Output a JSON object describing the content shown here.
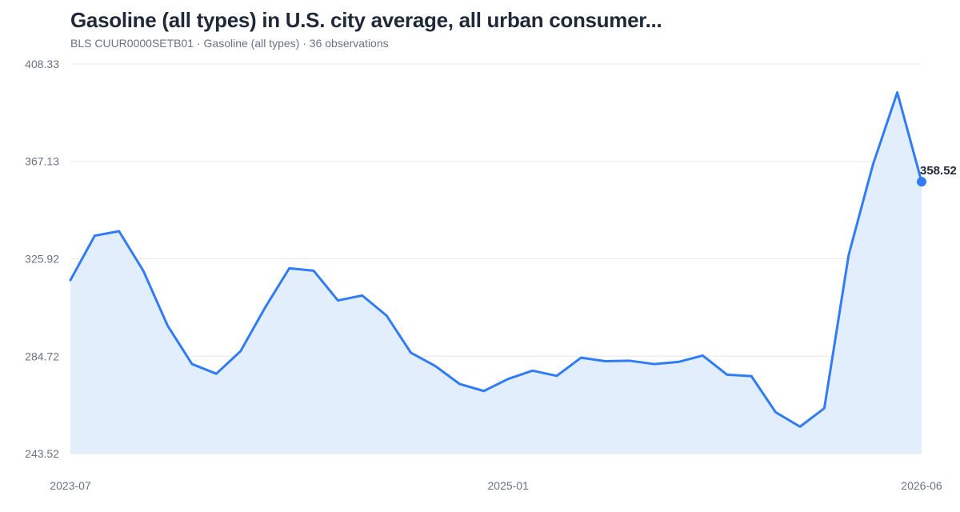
{
  "header": {
    "title": "Gasoline (all types) in U.S. city average, all urban consumer...",
    "subtitle": "BLS CUUR0000SETB01 · Gasoline (all types) · 36 observations"
  },
  "colors": {
    "line": "#2f7cf6",
    "area": "#e3eefc",
    "grid": "#e5e7eb",
    "title": "#1f2937",
    "axis_text": "#6b7280"
  },
  "chart_data": {
    "type": "area",
    "title": "Gasoline (all types) in U.S. city average, all urban consumer...",
    "xlabel": "",
    "ylabel": "",
    "grid": true,
    "x_ticks": [
      "2023-07",
      "2025-01",
      "2026-06"
    ],
    "y_ticks": [
      "408.33",
      "367.13",
      "325.92",
      "284.72",
      "243.52"
    ],
    "ylim": [
      243.52,
      408.33
    ],
    "last_value_label": "358.52",
    "x": [
      "2023-07",
      "2023-08",
      "2023-09",
      "2023-10",
      "2023-11",
      "2023-12",
      "2024-01",
      "2024-02",
      "2024-03",
      "2024-04",
      "2024-05",
      "2024-06",
      "2024-07",
      "2024-08",
      "2024-09",
      "2024-10",
      "2024-11",
      "2024-12",
      "2025-01",
      "2025-02",
      "2025-03",
      "2025-04",
      "2025-05",
      "2025-06",
      "2025-07",
      "2025-08",
      "2025-09",
      "2025-10",
      "2025-11",
      "2025-12",
      "2026-01",
      "2026-02",
      "2026-03",
      "2026-04",
      "2026-05",
      "2026-06"
    ],
    "series": [
      {
        "values": [
          316.9,
          335.7,
          337.6,
          320.8,
          297.6,
          281.4,
          277.3,
          286.9,
          305.2,
          321.9,
          320.9,
          308.3,
          310.4,
          301.9,
          286.2,
          280.6,
          273.0,
          270.0,
          275.1,
          278.6,
          276.4,
          284.1,
          282.6,
          282.8,
          281.4,
          282.3,
          285.0,
          276.9,
          276.3,
          261.0,
          254.9,
          262.7,
          327.5,
          365.8,
          396.3,
          358.52
        ]
      }
    ]
  }
}
